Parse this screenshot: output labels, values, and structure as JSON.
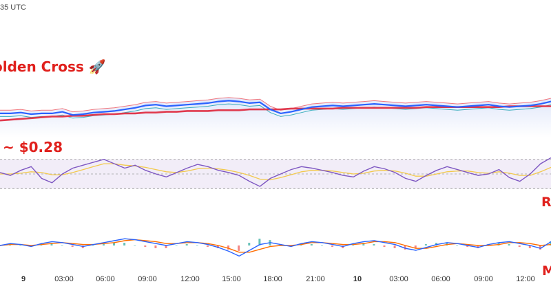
{
  "header": {
    "utc_fragment": "35 UTC"
  },
  "annotations": {
    "golden_cross": "olden Cross 🚀",
    "price_note": "~ $0.28",
    "rsi_cut": "R",
    "macd_cut": "M"
  },
  "colors": {
    "price": "#2962ff",
    "ma_slow": "#e0394d",
    "band_upper": "#f0565c",
    "band_lower": "#26a6b5",
    "rsi": "#7e57c2",
    "rsi_signal": "#f2c94c",
    "macd": "#2962ff",
    "macd_signal": "#ff6d00",
    "hist_up": "#26a69a",
    "hist_down": "#ef5350",
    "annotation": "#e0201c"
  },
  "chart_data": [
    {
      "type": "line",
      "panel": "price",
      "x": [
        0,
        1,
        2,
        3,
        4,
        5,
        6,
        7,
        8,
        9,
        10,
        11,
        12,
        13,
        14,
        15,
        16,
        17,
        18,
        19,
        20,
        21,
        22,
        23,
        24,
        25,
        26,
        27,
        28,
        29,
        30,
        31,
        32,
        33,
        34,
        35,
        36,
        37,
        38,
        39,
        40,
        41,
        42,
        43,
        44,
        45,
        46,
        47,
        48,
        49,
        50,
        51,
        52,
        53
      ],
      "series": [
        {
          "role": "price",
          "values": [
            61,
            61,
            62,
            60,
            61,
            61,
            63,
            59,
            60,
            62,
            63,
            64,
            66,
            68,
            71,
            72,
            70,
            71,
            72,
            73,
            74,
            76,
            77,
            76,
            74,
            75,
            66,
            61,
            63,
            66,
            69,
            70,
            71,
            70,
            71,
            72,
            73,
            72,
            71,
            70,
            71,
            72,
            71,
            70,
            69,
            70,
            71,
            72,
            70,
            69,
            70,
            71,
            73,
            76
          ]
        },
        {
          "role": "slow-ma",
          "values": [
            52,
            53,
            54,
            55,
            56,
            57,
            57,
            58,
            58,
            59,
            60,
            60,
            61,
            61,
            62,
            62,
            63,
            63,
            64,
            64,
            64,
            65,
            65,
            65,
            66,
            66,
            66,
            66,
            67,
            67,
            67,
            67,
            67,
            68,
            68,
            68,
            68,
            68,
            68,
            68,
            68,
            69,
            69,
            69,
            69,
            69,
            69,
            69,
            69,
            70,
            70,
            70,
            70,
            70
          ]
        },
        {
          "role": "band-upper",
          "values": [
            65,
            65,
            66,
            64,
            65,
            65,
            67,
            63,
            64,
            66,
            67,
            68,
            70,
            72,
            75,
            76,
            74,
            75,
            76,
            77,
            78,
            80,
            81,
            80,
            78,
            79,
            70,
            65,
            67,
            70,
            73,
            74,
            75,
            74,
            75,
            76,
            77,
            76,
            75,
            74,
            75,
            76,
            75,
            74,
            73,
            74,
            75,
            76,
            74,
            73,
            74,
            75,
            77,
            80
          ]
        },
        {
          "role": "band-lower",
          "values": [
            57,
            57,
            58,
            56,
            57,
            57,
            59,
            55,
            56,
            58,
            59,
            60,
            62,
            64,
            67,
            68,
            66,
            67,
            68,
            69,
            70,
            72,
            73,
            72,
            70,
            71,
            62,
            57,
            59,
            62,
            65,
            66,
            67,
            66,
            67,
            68,
            69,
            68,
            67,
            66,
            67,
            68,
            67,
            66,
            65,
            66,
            67,
            68,
            66,
            65,
            66,
            67,
            69,
            72
          ]
        }
      ]
    },
    {
      "type": "line",
      "panel": "rsi",
      "ylim": [
        20,
        80
      ],
      "levels": [
        70,
        50,
        30
      ],
      "series": [
        {
          "role": "rsi",
          "values": [
            52,
            48,
            55,
            60,
            44,
            38,
            50,
            58,
            62,
            66,
            70,
            64,
            58,
            62,
            55,
            50,
            46,
            52,
            58,
            63,
            60,
            55,
            52,
            48,
            40,
            33,
            44,
            50,
            56,
            60,
            58,
            55,
            52,
            48,
            46,
            54,
            60,
            57,
            52,
            44,
            40,
            48,
            55,
            60,
            56,
            52,
            48,
            50,
            56,
            45,
            40,
            50,
            64,
            72
          ]
        },
        {
          "role": "signal",
          "values": [
            50,
            50,
            51,
            53,
            52,
            49,
            49,
            52,
            56,
            60,
            64,
            64,
            62,
            61,
            59,
            56,
            53,
            52,
            54,
            57,
            58,
            57,
            55,
            52,
            48,
            43,
            42,
            45,
            49,
            53,
            55,
            55,
            54,
            52,
            50,
            51,
            54,
            55,
            54,
            51,
            47,
            47,
            50,
            53,
            54,
            54,
            52,
            51,
            53,
            51,
            48,
            48,
            53,
            59
          ]
        }
      ]
    },
    {
      "type": "line",
      "panel": "macd",
      "series": [
        {
          "role": "macd",
          "values": [
            0,
            0.2,
            0.1,
            -0.1,
            0.2,
            0.4,
            0.3,
            0.1,
            -0.1,
            0.1,
            0.3,
            0.5,
            0.7,
            0.6,
            0.4,
            0.2,
            0,
            0.2,
            0.4,
            0.3,
            0.1,
            -0.2,
            -0.6,
            -1.1,
            -0.5,
            0.1,
            0.3,
            0.1,
            -0.1,
            0.2,
            0.4,
            0.3,
            0.1,
            -0.1,
            0.2,
            0.4,
            0.5,
            0.3,
            0.1,
            -0.3,
            -0.5,
            -0.2,
            0.1,
            0.3,
            0.2,
            0,
            -0.2,
            0.1,
            0.3,
            0.4,
            0.2,
            0,
            -0.3,
            0.4
          ]
        },
        {
          "role": "signal",
          "values": [
            0,
            0.1,
            0.1,
            0,
            0.1,
            0.2,
            0.3,
            0.2,
            0.1,
            0.1,
            0.2,
            0.3,
            0.5,
            0.6,
            0.5,
            0.4,
            0.2,
            0.2,
            0.3,
            0.3,
            0.2,
            0,
            -0.3,
            -0.7,
            -0.7,
            -0.4,
            -0.1,
            0,
            0,
            0.1,
            0.3,
            0.3,
            0.2,
            0.1,
            0.1,
            0.2,
            0.4,
            0.4,
            0.3,
            0,
            -0.3,
            -0.3,
            -0.1,
            0.1,
            0.2,
            0.1,
            0,
            0,
            0.1,
            0.3,
            0.3,
            0.2,
            0,
            0.1
          ]
        }
      ]
    }
  ],
  "x_axis": {
    "ticks": [
      "9",
      "03:00",
      "06:00",
      "09:00",
      "12:00",
      "15:00",
      "18:00",
      "21:00",
      "10",
      "03:00",
      "06:00",
      "09:00",
      "12:00"
    ],
    "bold_ticks": [
      "9",
      "10"
    ]
  }
}
